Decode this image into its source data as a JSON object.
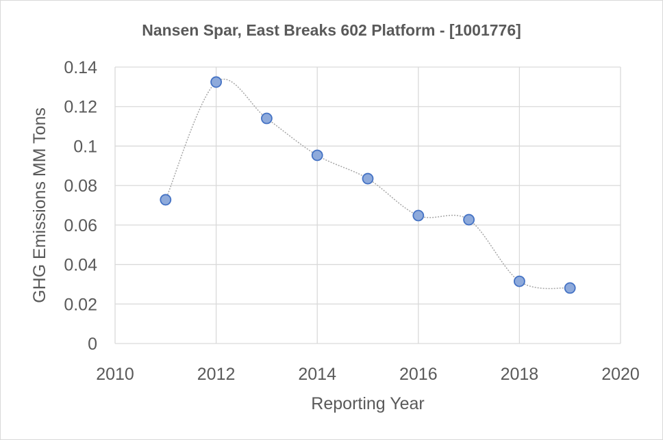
{
  "chart_data": {
    "type": "scatter",
    "title": "Nansen Spar, East Breaks 602 Platform - [1001776]",
    "xlabel": "Reporting Year",
    "ylabel": "GHG Emissions MM Tons",
    "xlim": [
      2010,
      2020
    ],
    "ylim": [
      0,
      0.14
    ],
    "xticks": [
      "2010",
      "2012",
      "2014",
      "2016",
      "2018",
      "2020"
    ],
    "yticks": [
      "0",
      "0.02",
      "0.04",
      "0.06",
      "0.08",
      "0.1",
      "0.12",
      "0.14"
    ],
    "grid": true,
    "legend": "none",
    "line_style": "smoothed dotted",
    "series": [
      {
        "name": "GHG Emissions",
        "x": [
          2011,
          2012,
          2013,
          2014,
          2015,
          2016,
          2017,
          2018,
          2019
        ],
        "y": [
          0.0728,
          0.1324,
          0.114,
          0.0953,
          0.0835,
          0.0648,
          0.0627,
          0.0315,
          0.0281
        ]
      }
    ],
    "colors": {
      "marker_fill": "#8eaadb",
      "marker_stroke": "#4472c4",
      "line": "#a6a6a6",
      "grid": "#d9d9d9"
    }
  }
}
